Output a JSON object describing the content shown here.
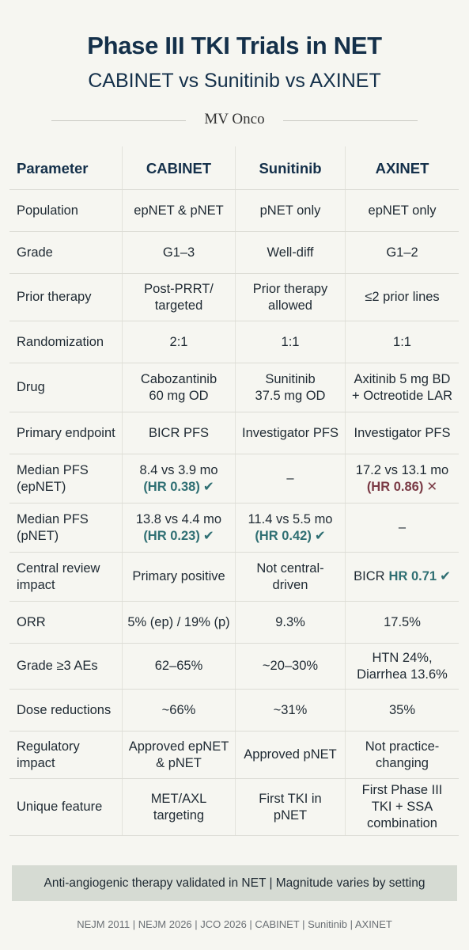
{
  "title": "Phase III TKI Trials in NET",
  "subtitle": "CABINET vs Sunitinib vs AXINET",
  "brand": "MV Onco",
  "table": {
    "headers": [
      "Parameter",
      "CABINET",
      "Sunitinib",
      "AXINET"
    ],
    "rows": [
      {
        "param": [
          "Population"
        ],
        "cab": [
          "epNET & pNET"
        ],
        "sun": [
          "pNET only"
        ],
        "axi": [
          "epNET only"
        ]
      },
      {
        "param": [
          "Grade"
        ],
        "cab": [
          "G1–3"
        ],
        "sun": [
          "Well-diff"
        ],
        "axi": [
          "G1–2"
        ]
      },
      {
        "param": [
          "Prior therapy"
        ],
        "cab": [
          "Post-PRRT/",
          "targeted"
        ],
        "sun": [
          "Prior therapy",
          "allowed"
        ],
        "axi": [
          "≤2 prior lines"
        ]
      },
      {
        "param": [
          "Randomization"
        ],
        "cab": [
          "2:1"
        ],
        "sun": [
          "1:1"
        ],
        "axi": [
          "1:1"
        ]
      },
      {
        "param": [
          "Drug"
        ],
        "cab": [
          "Cabozantinib",
          "60 mg OD"
        ],
        "sun": [
          "Sunitinib",
          "37.5 mg OD"
        ],
        "axi": [
          "Axitinib 5 mg BD",
          "+ Octreotide LAR"
        ]
      },
      {
        "param": [
          "Primary endpoint"
        ],
        "cab": [
          "BICR PFS"
        ],
        "sun": [
          "Investigator PFS"
        ],
        "axi": [
          "Investigator PFS"
        ]
      },
      {
        "param": [
          "Median PFS",
          "(epNET)"
        ],
        "cab": [
          "8.4 vs 3.9 mo"
        ],
        "cab_hr": "(HR 0.38)",
        "cab_hr_mark": "✔",
        "cab_hr_type": "good",
        "sun": [
          "–"
        ],
        "axi": [
          "17.2 vs 13.1 mo"
        ],
        "axi_hr": "(HR 0.86)",
        "axi_hr_mark": "✕",
        "axi_hr_type": "bad"
      },
      {
        "param": [
          "Median PFS",
          "(pNET)"
        ],
        "cab": [
          "13.8 vs 4.4 mo"
        ],
        "cab_hr": "(HR 0.23)",
        "cab_hr_mark": "✔",
        "cab_hr_type": "good",
        "sun": [
          "11.4 vs 5.5 mo"
        ],
        "sun_hr": "(HR 0.42)",
        "sun_hr_mark": "✔",
        "sun_hr_type": "good",
        "axi": [
          "–"
        ]
      },
      {
        "param": [
          "Central review",
          "impact"
        ],
        "cab": [
          "Primary positive"
        ],
        "sun": [
          "Not central-",
          "driven"
        ],
        "axi_inline": {
          "prefix": "BICR",
          "hr": "HR 0.71",
          "mark": "✔"
        }
      },
      {
        "param": [
          "ORR"
        ],
        "cab": [
          "5% (ep) / 19% (p)"
        ],
        "sun": [
          "9.3%"
        ],
        "axi": [
          "17.5%"
        ]
      },
      {
        "param": [
          "Grade ≥3 AEs"
        ],
        "cab": [
          "62–65%"
        ],
        "sun": [
          "~20–30%"
        ],
        "axi": [
          "HTN 24%,",
          "Diarrhea 13.6%"
        ]
      },
      {
        "param": [
          "Dose reductions"
        ],
        "cab": [
          "~66%"
        ],
        "sun": [
          "~31%"
        ],
        "axi": [
          "35%"
        ]
      },
      {
        "param": [
          "Regulatory",
          "impact"
        ],
        "cab": [
          "Approved epNET",
          "& pNET"
        ],
        "sun": [
          "Approved pNET"
        ],
        "axi": [
          "Not practice-",
          "changing"
        ]
      },
      {
        "param": [
          "Unique feature"
        ],
        "cab": [
          "MET/AXL",
          "targeting"
        ],
        "sun": [
          "First TKI in",
          "pNET"
        ],
        "axi": [
          "First Phase III",
          "TKI + SSA",
          "combination"
        ]
      }
    ]
  },
  "banner": "Anti-angiogenic therapy validated in NET | Magnitude varies by setting",
  "footer": "NEJM 2011 | NEJM 2026 | JCO 2026 | CABINET | Sunitinib | AXINET"
}
